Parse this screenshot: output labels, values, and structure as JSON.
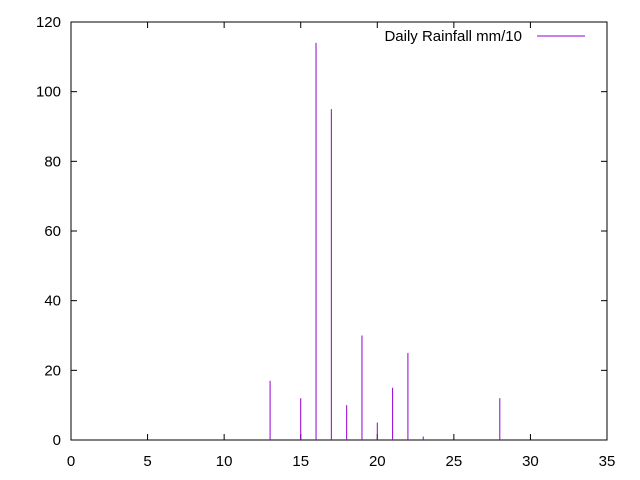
{
  "chart_data": {
    "type": "bar",
    "style": "impulses",
    "series": [
      {
        "name": "Daily Rainfall mm/10",
        "color": "#9400d3",
        "points": [
          {
            "x": 13,
            "y": 17
          },
          {
            "x": 15,
            "y": 12
          },
          {
            "x": 16,
            "y": 114
          },
          {
            "x": 17,
            "y": 95
          },
          {
            "x": 18,
            "y": 10
          },
          {
            "x": 19,
            "y": 30
          },
          {
            "x": 20,
            "y": 5
          },
          {
            "x": 21,
            "y": 15
          },
          {
            "x": 22,
            "y": 25
          },
          {
            "x": 23,
            "y": 1
          },
          {
            "x": 28,
            "y": 12
          }
        ]
      }
    ],
    "xlim": [
      0,
      35
    ],
    "ylim": [
      0,
      120
    ],
    "xticks": [
      "0",
      "5",
      "10",
      "15",
      "20",
      "25",
      "30",
      "35"
    ],
    "yticks": [
      "0",
      "20",
      "40",
      "60",
      "80",
      "100",
      "120"
    ],
    "grid": false,
    "legend_position": "top-right",
    "title": "",
    "xlabel": "",
    "ylabel": ""
  }
}
